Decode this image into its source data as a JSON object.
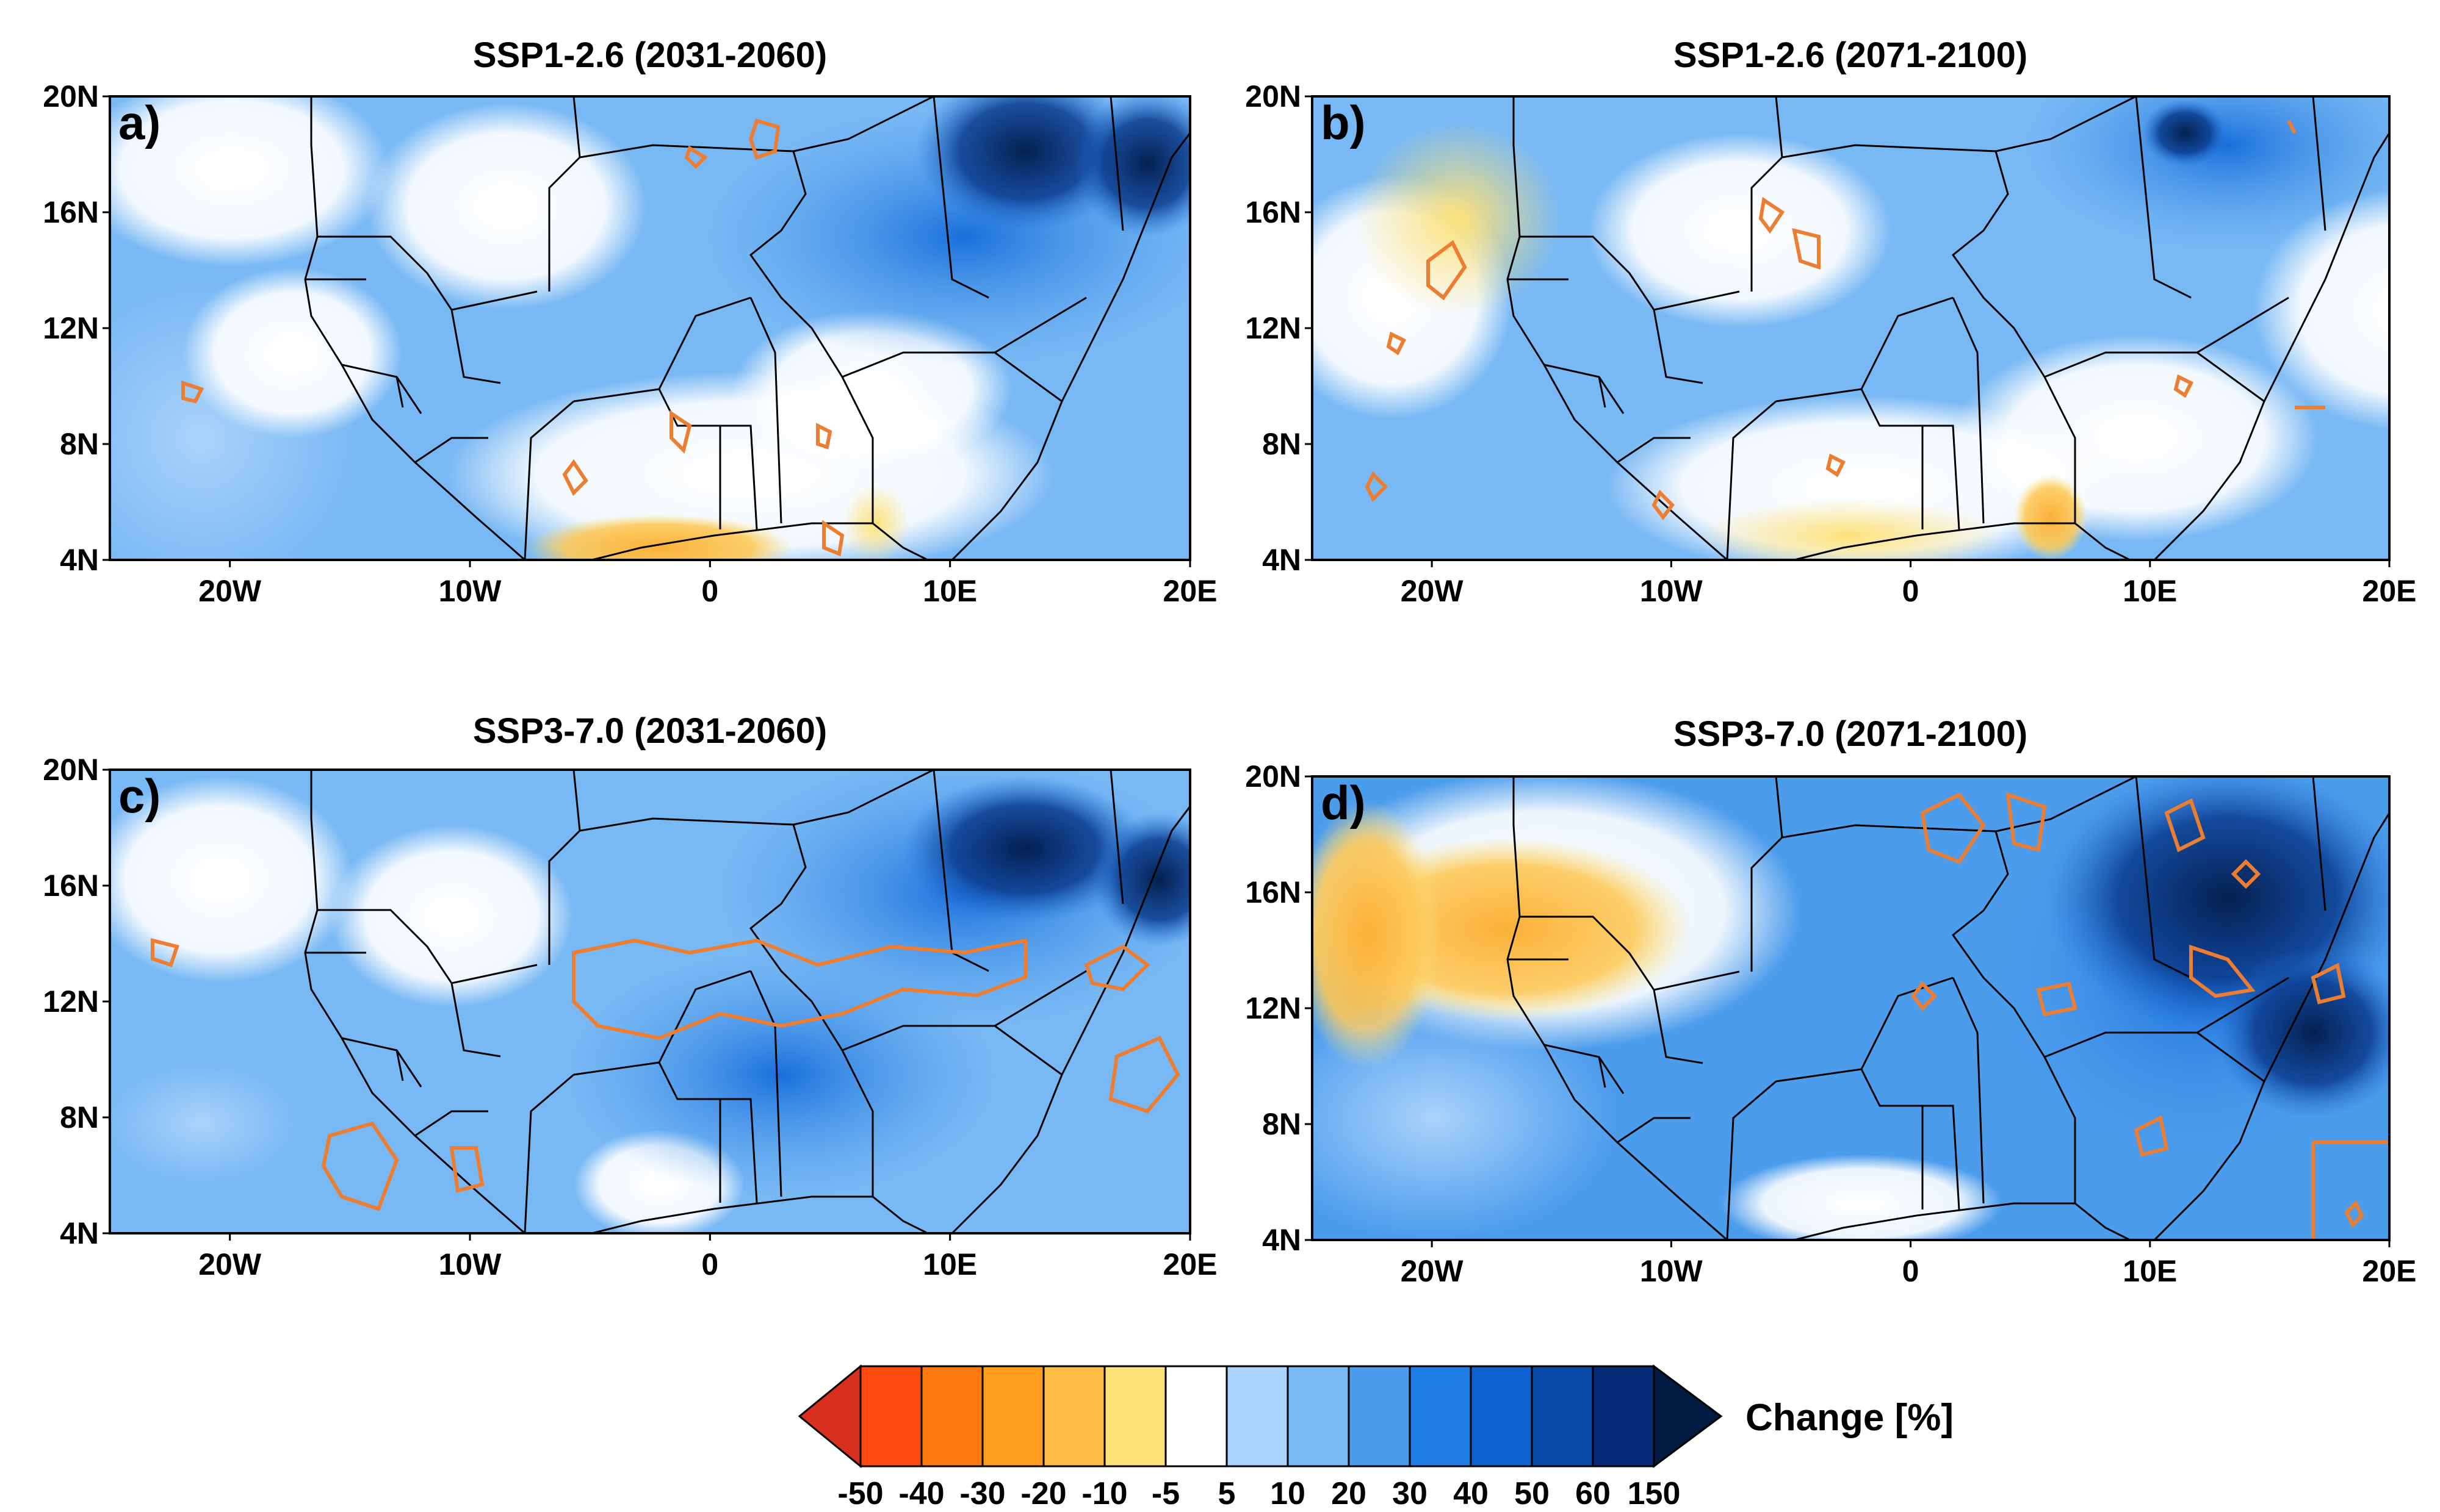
{
  "figure": {
    "panels": [
      {
        "id": "a",
        "label": "a)",
        "title": "SSP1-2.6 (2031-2060)"
      },
      {
        "id": "b",
        "label": "b)",
        "title": "SSP1-2.6 (2071-2100)"
      },
      {
        "id": "c",
        "label": "c)",
        "title": "SSP3-7.0 (2031-2060)"
      },
      {
        "id": "d",
        "label": "d)",
        "title": "SSP3-7.0 (2071-2100)"
      }
    ],
    "lat_ticks": [
      "20N",
      "16N",
      "12N",
      "8N",
      "4N"
    ],
    "lon_ticks": [
      "20W",
      "10W",
      "0",
      "10E",
      "20E"
    ],
    "colorbar": {
      "title": "Change [%]",
      "tick_labels": [
        "-50",
        "-40",
        "-30",
        "-20",
        "-10",
        "-5",
        "5",
        "10",
        "20",
        "30",
        "40",
        "50",
        "60",
        "150"
      ],
      "colors": [
        "#d7301f",
        "#ff4a0f",
        "#ff7a10",
        "#ff9e1c",
        "#fdbd46",
        "#fde27a",
        "#ffffff",
        "#a9d3fb",
        "#78b8f4",
        "#4c9cec",
        "#1f7de6",
        "#0f62d0",
        "#0a48a8",
        "#062c78",
        "#021a40"
      ]
    }
  }
}
